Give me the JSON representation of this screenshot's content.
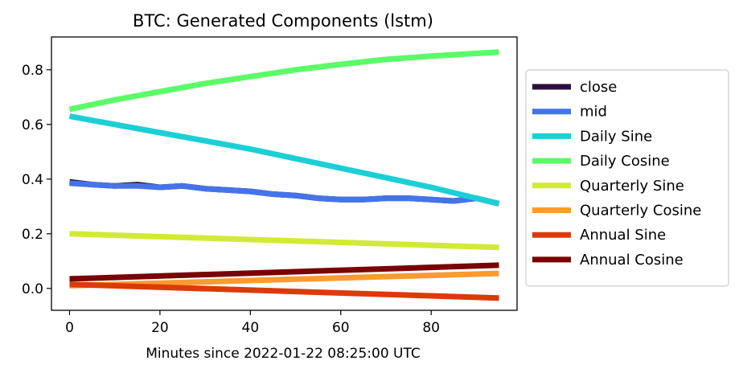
{
  "chart_data": {
    "type": "line",
    "title": "BTC: Generated Components (lstm)",
    "xlabel": "Minutes since 2022-01-22 08:25:00 UTC",
    "ylabel": "",
    "xlim": [
      -4,
      99
    ],
    "ylim": [
      -0.08,
      0.92
    ],
    "x_ticks": [
      0,
      20,
      40,
      60,
      80
    ],
    "y_ticks": [
      0.0,
      0.2,
      0.4,
      0.6,
      0.8
    ],
    "grid": false,
    "legend_position": "right, outside plot",
    "series": [
      {
        "name": "close",
        "color": "#2d0f3d",
        "x": [
          0,
          5,
          10,
          15,
          20,
          25,
          30,
          35,
          40,
          45,
          50,
          55,
          60,
          65,
          70,
          75,
          80,
          85,
          90,
          95
        ],
        "y": [
          0.39,
          0.38,
          0.375,
          0.38,
          0.37,
          0.375,
          0.365,
          0.36,
          0.355,
          0.345,
          0.34,
          0.33,
          0.325,
          0.325,
          0.33,
          0.33,
          0.325,
          0.32,
          0.33,
          0.31
        ]
      },
      {
        "name": "mid",
        "color": "#4574e8",
        "x": [
          0,
          5,
          10,
          15,
          20,
          25,
          30,
          35,
          40,
          45,
          50,
          55,
          60,
          65,
          70,
          75,
          80,
          85,
          90,
          95
        ],
        "y": [
          0.385,
          0.38,
          0.375,
          0.375,
          0.37,
          0.375,
          0.365,
          0.36,
          0.355,
          0.345,
          0.34,
          0.33,
          0.325,
          0.325,
          0.33,
          0.33,
          0.325,
          0.32,
          0.33,
          0.31
        ]
      },
      {
        "name": "Daily Sine",
        "color": "#1ccfd5",
        "x": [
          0,
          10,
          20,
          30,
          40,
          50,
          60,
          70,
          80,
          90,
          95
        ],
        "y": [
          0.63,
          0.6,
          0.57,
          0.54,
          0.51,
          0.475,
          0.44,
          0.405,
          0.37,
          0.33,
          0.31
        ]
      },
      {
        "name": "Daily Cosine",
        "color": "#5bfb68",
        "x": [
          0,
          10,
          20,
          30,
          40,
          50,
          60,
          70,
          80,
          90,
          95
        ],
        "y": [
          0.655,
          0.69,
          0.72,
          0.75,
          0.775,
          0.8,
          0.82,
          0.838,
          0.85,
          0.86,
          0.865
        ]
      },
      {
        "name": "Quarterly Sine",
        "color": "#d2ea36",
        "x": [
          0,
          95
        ],
        "y": [
          0.2,
          0.15
        ]
      },
      {
        "name": "Quarterly Cosine",
        "color": "#fa9b2e",
        "x": [
          0,
          95
        ],
        "y": [
          0.01,
          0.055
        ]
      },
      {
        "name": "Annual Sine",
        "color": "#dc3a09",
        "x": [
          0,
          95
        ],
        "y": [
          0.015,
          -0.035
        ]
      },
      {
        "name": "Annual Cosine",
        "color": "#7a0403",
        "x": [
          0,
          95
        ],
        "y": [
          0.035,
          0.085
        ]
      }
    ]
  }
}
